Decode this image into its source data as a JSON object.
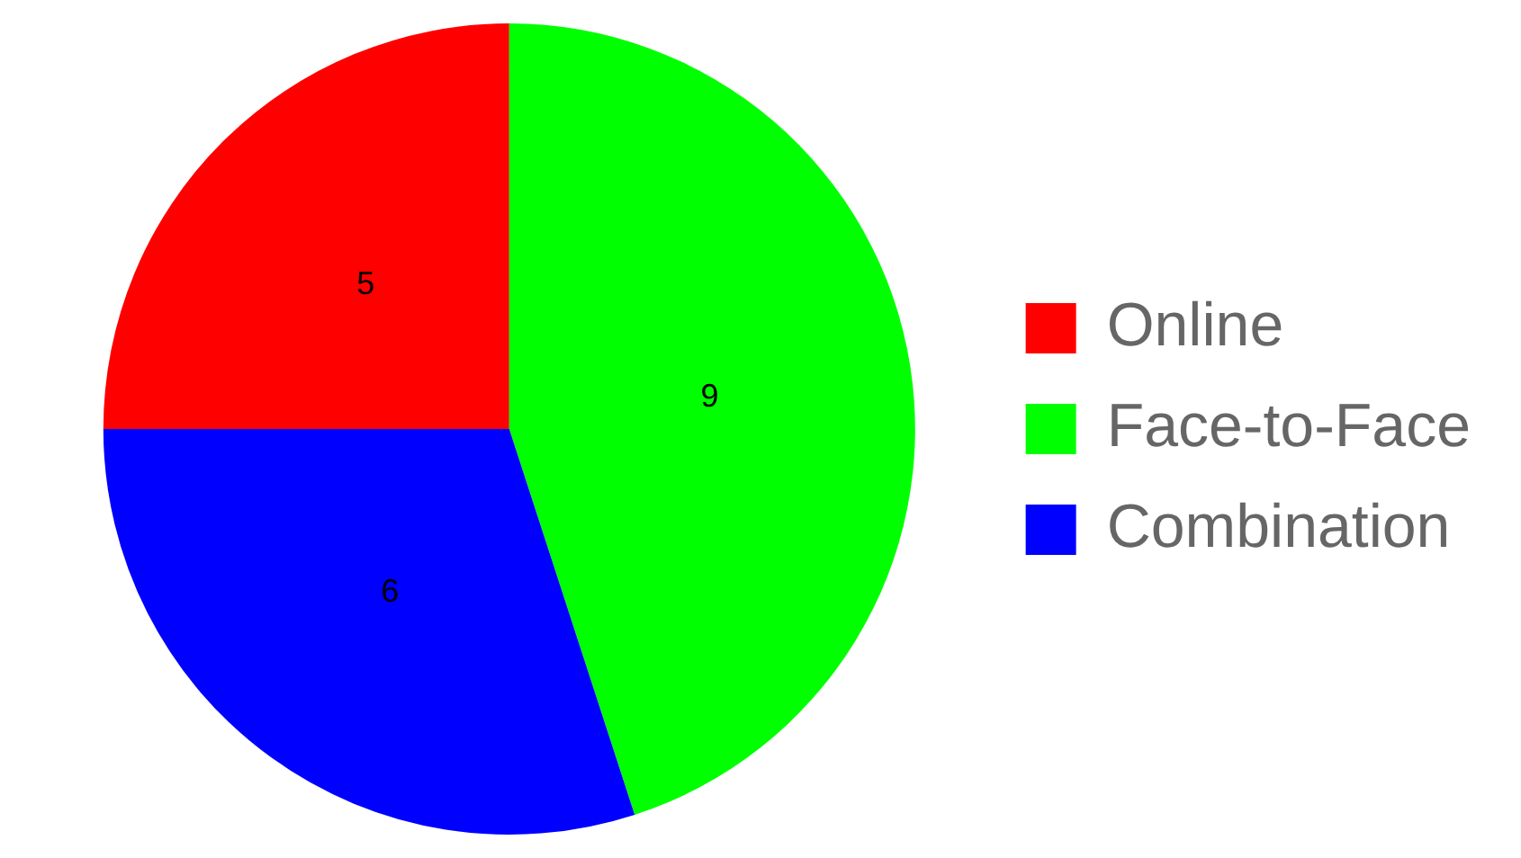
{
  "chart_data": {
    "type": "pie",
    "categories": [
      "Online",
      "Face-to-Face",
      "Combination"
    ],
    "values": [
      5,
      9,
      6
    ],
    "colors": [
      "#ff0000",
      "#00ff00",
      "#0000ff"
    ],
    "data_labels": true,
    "legend": "right"
  }
}
